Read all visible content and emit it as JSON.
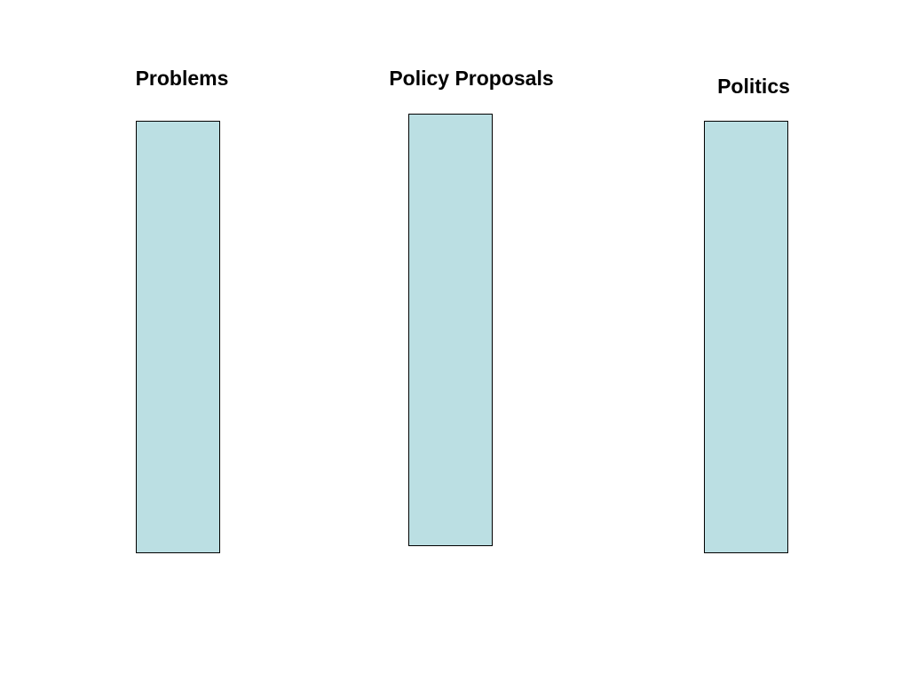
{
  "nodes": [
    {
      "label": "Problems"
    },
    {
      "label": "Policy Proposals"
    },
    {
      "label": "Politics"
    }
  ]
}
